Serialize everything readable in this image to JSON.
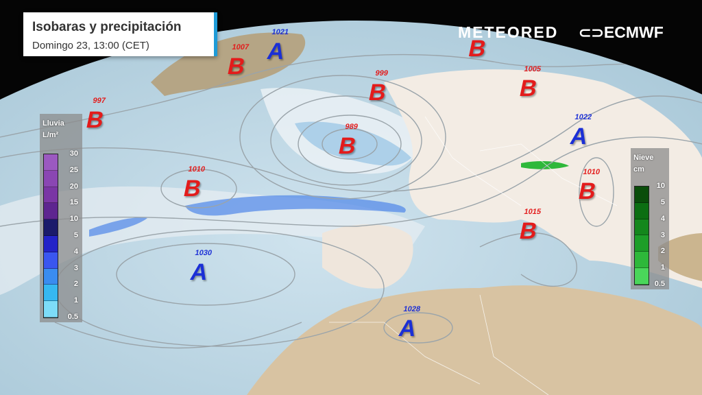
{
  "header": {
    "title": "Isobaras y precipitación",
    "subtitle": "Domingo 23, 13:00 (CET)"
  },
  "brands": {
    "meteored": "METEORED",
    "ecmwf": "ECMWF"
  },
  "rain_legend": {
    "title": "Lluvia",
    "unit": "L/m²",
    "labels": [
      "30",
      "25",
      "20",
      "15",
      "10",
      "5",
      "4",
      "3",
      "2",
      "1",
      "0.5"
    ],
    "colors": [
      "#9b59c0",
      "#8a46b3",
      "#7a36a5",
      "#5e2590",
      "#1b1b6b",
      "#2323c8",
      "#3a56f0",
      "#3a8cf0",
      "#36b8f2",
      "#7ddcf8"
    ]
  },
  "snow_legend": {
    "title": "Nieve",
    "unit": "cm",
    "labels": [
      "10",
      "5",
      "4",
      "3",
      "2",
      "1",
      "0.5"
    ],
    "colors": [
      "#0a4d0a",
      "#0c6e12",
      "#14871c",
      "#1d9e28",
      "#2eb83a",
      "#4ad65a"
    ]
  },
  "pressure_systems": [
    {
      "type": "B",
      "value": "1007"
    },
    {
      "type": "A",
      "value": "1021"
    },
    {
      "type": "B",
      "value": "997"
    },
    {
      "type": "B",
      "value": "999"
    },
    {
      "type": "B",
      "value": "989"
    },
    {
      "type": "B",
      "value": "1010"
    },
    {
      "type": "A",
      "value": "1030"
    },
    {
      "type": "A",
      "value": "1028"
    },
    {
      "type": "B",
      "value": "1015"
    },
    {
      "type": "B",
      "value": "1010"
    },
    {
      "type": "A",
      "value": "1022"
    },
    {
      "type": "B",
      "value": "1005"
    },
    {
      "type": "B",
      "value": ""
    }
  ]
}
